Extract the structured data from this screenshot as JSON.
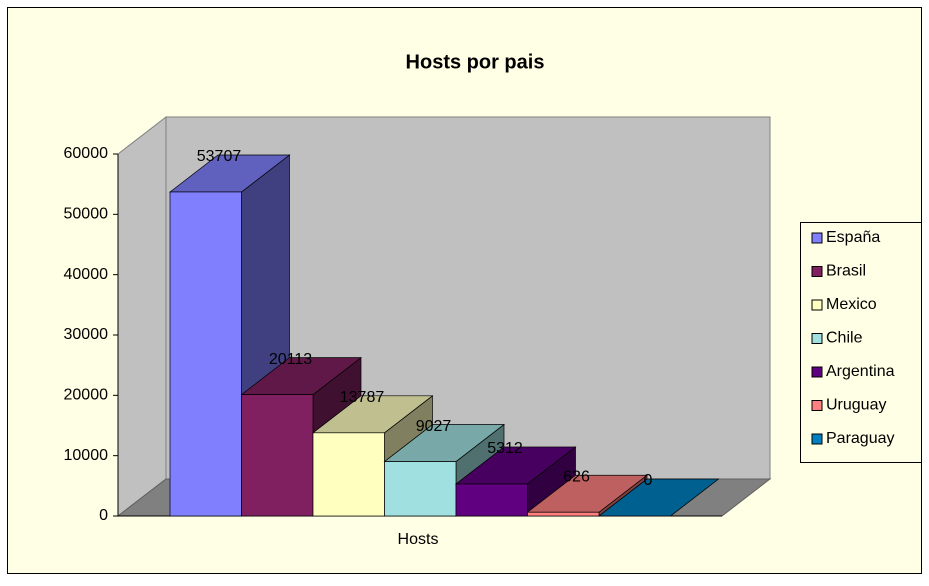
{
  "chart_data": {
    "type": "bar3d",
    "title": "Hosts por pais",
    "categories": [
      "Hosts"
    ],
    "series": [
      {
        "name": "España",
        "color": "#8080ff",
        "values": [
          53707
        ]
      },
      {
        "name": "Brasil",
        "color": "#802060",
        "values": [
          20113
        ]
      },
      {
        "name": "Mexico",
        "color": "#ffffc0",
        "values": [
          13787
        ]
      },
      {
        "name": "Chile",
        "color": "#a0e0e0",
        "values": [
          9027
        ]
      },
      {
        "name": "Argentina",
        "color": "#600080",
        "values": [
          5312
        ]
      },
      {
        "name": "Uruguay",
        "color": "#ff8080",
        "values": [
          626
        ]
      },
      {
        "name": "Paraguay",
        "color": "#0080c0",
        "values": [
          0
        ]
      }
    ],
    "ylim": [
      0,
      60000
    ],
    "yticks": [
      0,
      10000,
      20000,
      30000,
      40000,
      50000,
      60000
    ],
    "legend": "right"
  }
}
